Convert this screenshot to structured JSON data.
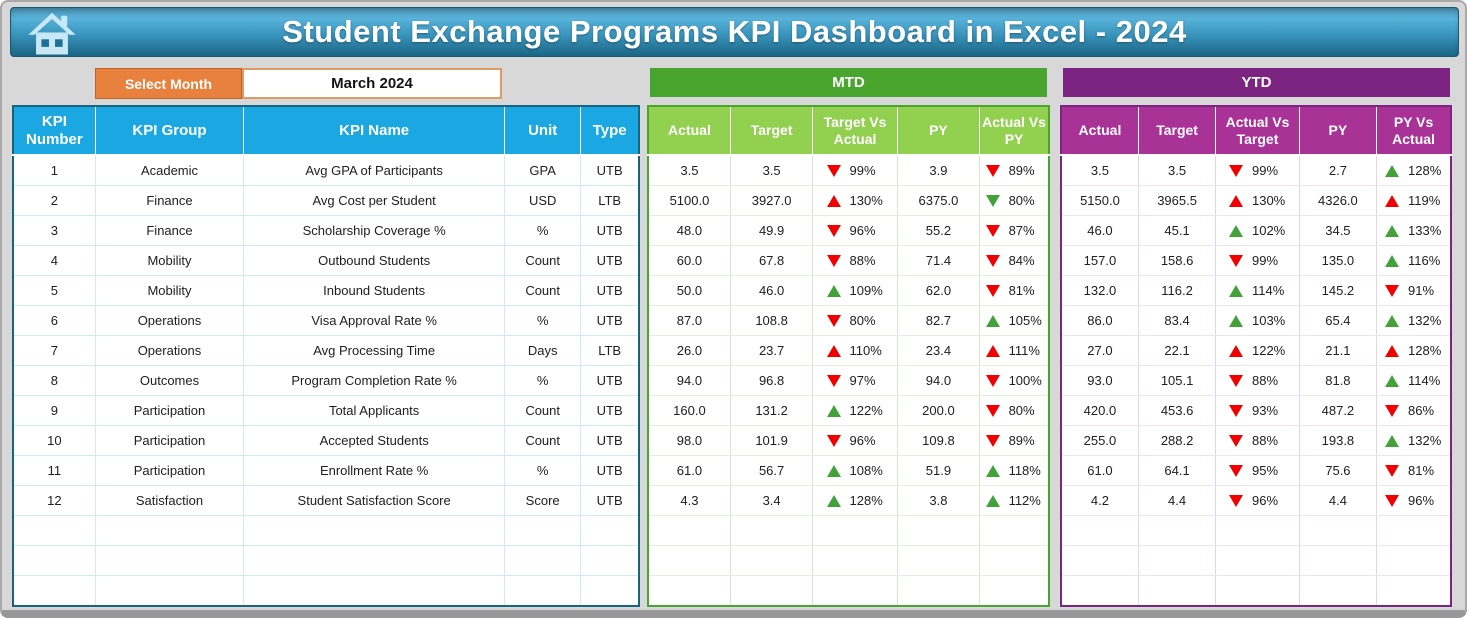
{
  "header": {
    "title": "Student Exchange Programs KPI Dashboard in Excel - 2024"
  },
  "month_selector": {
    "label": "Select Month",
    "value": "March 2024"
  },
  "kpi_table": {
    "headers": {
      "number": "KPI Number",
      "group": "KPI Group",
      "name": "KPI Name",
      "unit": "Unit",
      "type": "Type"
    }
  },
  "mtd": {
    "title": "MTD",
    "headers": [
      "Actual",
      "Target",
      "Target Vs Actual",
      "PY",
      "Actual Vs PY"
    ]
  },
  "ytd": {
    "title": "YTD",
    "headers": [
      "Actual",
      "Target",
      "Actual Vs Target",
      "PY",
      "PY Vs Actual"
    ]
  },
  "colors": {
    "banner_top": "#58b2d9",
    "banner_bottom": "#1b6584",
    "kpi_header_blue": "#1ba7e1",
    "kpi_border_blue": "#17647f",
    "orange": "#e8813e",
    "mtd_dark_green": "#4aa52f",
    "mtd_light_green": "#92d050",
    "ytd_dark_purple": "#7b2482",
    "ytd_light_purple": "#a83296",
    "arrow_red": "#f20000",
    "arrow_green": "#43a13a"
  },
  "empty_rows": 3,
  "rows": [
    {
      "number": "1",
      "group": "Academic",
      "name": "Avg GPA of Participants",
      "unit": "GPA",
      "type": "UTB",
      "mtd": {
        "actual": "3.5",
        "target": "3.5",
        "target_vs_actual": {
          "dir": "down",
          "color": "red",
          "value": "99%"
        },
        "py": "3.9",
        "actual_vs_py": {
          "dir": "down",
          "color": "red",
          "value": "89%"
        }
      },
      "ytd": {
        "actual": "3.5",
        "target": "3.5",
        "actual_vs_target": {
          "dir": "down",
          "color": "red",
          "value": "99%"
        },
        "py": "2.7",
        "py_vs_actual": {
          "dir": "up",
          "color": "green",
          "value": "128%"
        }
      }
    },
    {
      "number": "2",
      "group": "Finance",
      "name": "Avg Cost per Student",
      "unit": "USD",
      "type": "LTB",
      "mtd": {
        "actual": "5100.0",
        "target": "3927.0",
        "target_vs_actual": {
          "dir": "up",
          "color": "red",
          "value": "130%"
        },
        "py": "6375.0",
        "actual_vs_py": {
          "dir": "down",
          "color": "green",
          "value": "80%"
        }
      },
      "ytd": {
        "actual": "5150.0",
        "target": "3965.5",
        "actual_vs_target": {
          "dir": "up",
          "color": "red",
          "value": "130%"
        },
        "py": "4326.0",
        "py_vs_actual": {
          "dir": "up",
          "color": "red",
          "value": "119%"
        }
      }
    },
    {
      "number": "3",
      "group": "Finance",
      "name": "Scholarship Coverage %",
      "unit": "%",
      "type": "UTB",
      "mtd": {
        "actual": "48.0",
        "target": "49.9",
        "target_vs_actual": {
          "dir": "down",
          "color": "red",
          "value": "96%"
        },
        "py": "55.2",
        "actual_vs_py": {
          "dir": "down",
          "color": "red",
          "value": "87%"
        }
      },
      "ytd": {
        "actual": "46.0",
        "target": "45.1",
        "actual_vs_target": {
          "dir": "up",
          "color": "green",
          "value": "102%"
        },
        "py": "34.5",
        "py_vs_actual": {
          "dir": "up",
          "color": "green",
          "value": "133%"
        }
      }
    },
    {
      "number": "4",
      "group": "Mobility",
      "name": "Outbound Students",
      "unit": "Count",
      "type": "UTB",
      "mtd": {
        "actual": "60.0",
        "target": "67.8",
        "target_vs_actual": {
          "dir": "down",
          "color": "red",
          "value": "88%"
        },
        "py": "71.4",
        "actual_vs_py": {
          "dir": "down",
          "color": "red",
          "value": "84%"
        }
      },
      "ytd": {
        "actual": "157.0",
        "target": "158.6",
        "actual_vs_target": {
          "dir": "down",
          "color": "red",
          "value": "99%"
        },
        "py": "135.0",
        "py_vs_actual": {
          "dir": "up",
          "color": "green",
          "value": "116%"
        }
      }
    },
    {
      "number": "5",
      "group": "Mobility",
      "name": "Inbound Students",
      "unit": "Count",
      "type": "UTB",
      "mtd": {
        "actual": "50.0",
        "target": "46.0",
        "target_vs_actual": {
          "dir": "up",
          "color": "green",
          "value": "109%"
        },
        "py": "62.0",
        "actual_vs_py": {
          "dir": "down",
          "color": "red",
          "value": "81%"
        }
      },
      "ytd": {
        "actual": "132.0",
        "target": "116.2",
        "actual_vs_target": {
          "dir": "up",
          "color": "green",
          "value": "114%"
        },
        "py": "145.2",
        "py_vs_actual": {
          "dir": "down",
          "color": "red",
          "value": "91%"
        }
      }
    },
    {
      "number": "6",
      "group": "Operations",
      "name": "Visa Approval Rate %",
      "unit": "%",
      "type": "UTB",
      "mtd": {
        "actual": "87.0",
        "target": "108.8",
        "target_vs_actual": {
          "dir": "down",
          "color": "red",
          "value": "80%"
        },
        "py": "82.7",
        "actual_vs_py": {
          "dir": "up",
          "color": "green",
          "value": "105%"
        }
      },
      "ytd": {
        "actual": "86.0",
        "target": "83.4",
        "actual_vs_target": {
          "dir": "up",
          "color": "green",
          "value": "103%"
        },
        "py": "65.4",
        "py_vs_actual": {
          "dir": "up",
          "color": "green",
          "value": "132%"
        }
      }
    },
    {
      "number": "7",
      "group": "Operations",
      "name": "Avg Processing Time",
      "unit": "Days",
      "type": "LTB",
      "mtd": {
        "actual": "26.0",
        "target": "23.7",
        "target_vs_actual": {
          "dir": "up",
          "color": "red",
          "value": "110%"
        },
        "py": "23.4",
        "actual_vs_py": {
          "dir": "up",
          "color": "red",
          "value": "111%"
        }
      },
      "ytd": {
        "actual": "27.0",
        "target": "22.1",
        "actual_vs_target": {
          "dir": "up",
          "color": "red",
          "value": "122%"
        },
        "py": "21.1",
        "py_vs_actual": {
          "dir": "up",
          "color": "red",
          "value": "128%"
        }
      }
    },
    {
      "number": "8",
      "group": "Outcomes",
      "name": "Program Completion Rate %",
      "unit": "%",
      "type": "UTB",
      "mtd": {
        "actual": "94.0",
        "target": "96.8",
        "target_vs_actual": {
          "dir": "down",
          "color": "red",
          "value": "97%"
        },
        "py": "94.0",
        "actual_vs_py": {
          "dir": "down",
          "color": "red",
          "value": "100%"
        }
      },
      "ytd": {
        "actual": "93.0",
        "target": "105.1",
        "actual_vs_target": {
          "dir": "down",
          "color": "red",
          "value": "88%"
        },
        "py": "81.8",
        "py_vs_actual": {
          "dir": "up",
          "color": "green",
          "value": "114%"
        }
      }
    },
    {
      "number": "9",
      "group": "Participation",
      "name": "Total Applicants",
      "unit": "Count",
      "type": "UTB",
      "mtd": {
        "actual": "160.0",
        "target": "131.2",
        "target_vs_actual": {
          "dir": "up",
          "color": "green",
          "value": "122%"
        },
        "py": "200.0",
        "actual_vs_py": {
          "dir": "down",
          "color": "red",
          "value": "80%"
        }
      },
      "ytd": {
        "actual": "420.0",
        "target": "453.6",
        "actual_vs_target": {
          "dir": "down",
          "color": "red",
          "value": "93%"
        },
        "py": "487.2",
        "py_vs_actual": {
          "dir": "down",
          "color": "red",
          "value": "86%"
        }
      }
    },
    {
      "number": "10",
      "group": "Participation",
      "name": "Accepted Students",
      "unit": "Count",
      "type": "UTB",
      "mtd": {
        "actual": "98.0",
        "target": "101.9",
        "target_vs_actual": {
          "dir": "down",
          "color": "red",
          "value": "96%"
        },
        "py": "109.8",
        "actual_vs_py": {
          "dir": "down",
          "color": "red",
          "value": "89%"
        }
      },
      "ytd": {
        "actual": "255.0",
        "target": "288.2",
        "actual_vs_target": {
          "dir": "down",
          "color": "red",
          "value": "88%"
        },
        "py": "193.8",
        "py_vs_actual": {
          "dir": "up",
          "color": "green",
          "value": "132%"
        }
      }
    },
    {
      "number": "11",
      "group": "Participation",
      "name": "Enrollment Rate %",
      "unit": "%",
      "type": "UTB",
      "mtd": {
        "actual": "61.0",
        "target": "56.7",
        "target_vs_actual": {
          "dir": "up",
          "color": "green",
          "value": "108%"
        },
        "py": "51.9",
        "actual_vs_py": {
          "dir": "up",
          "color": "green",
          "value": "118%"
        }
      },
      "ytd": {
        "actual": "61.0",
        "target": "64.1",
        "actual_vs_target": {
          "dir": "down",
          "color": "red",
          "value": "95%"
        },
        "py": "75.6",
        "py_vs_actual": {
          "dir": "down",
          "color": "red",
          "value": "81%"
        }
      }
    },
    {
      "number": "12",
      "group": "Satisfaction",
      "name": "Student Satisfaction Score",
      "unit": "Score",
      "type": "UTB",
      "mtd": {
        "actual": "4.3",
        "target": "3.4",
        "target_vs_actual": {
          "dir": "up",
          "color": "green",
          "value": "128%"
        },
        "py": "3.8",
        "actual_vs_py": {
          "dir": "up",
          "color": "green",
          "value": "112%"
        }
      },
      "ytd": {
        "actual": "4.2",
        "target": "4.4",
        "actual_vs_target": {
          "dir": "down",
          "color": "red",
          "value": "96%"
        },
        "py": "4.4",
        "py_vs_actual": {
          "dir": "down",
          "color": "red",
          "value": "96%"
        }
      }
    }
  ]
}
